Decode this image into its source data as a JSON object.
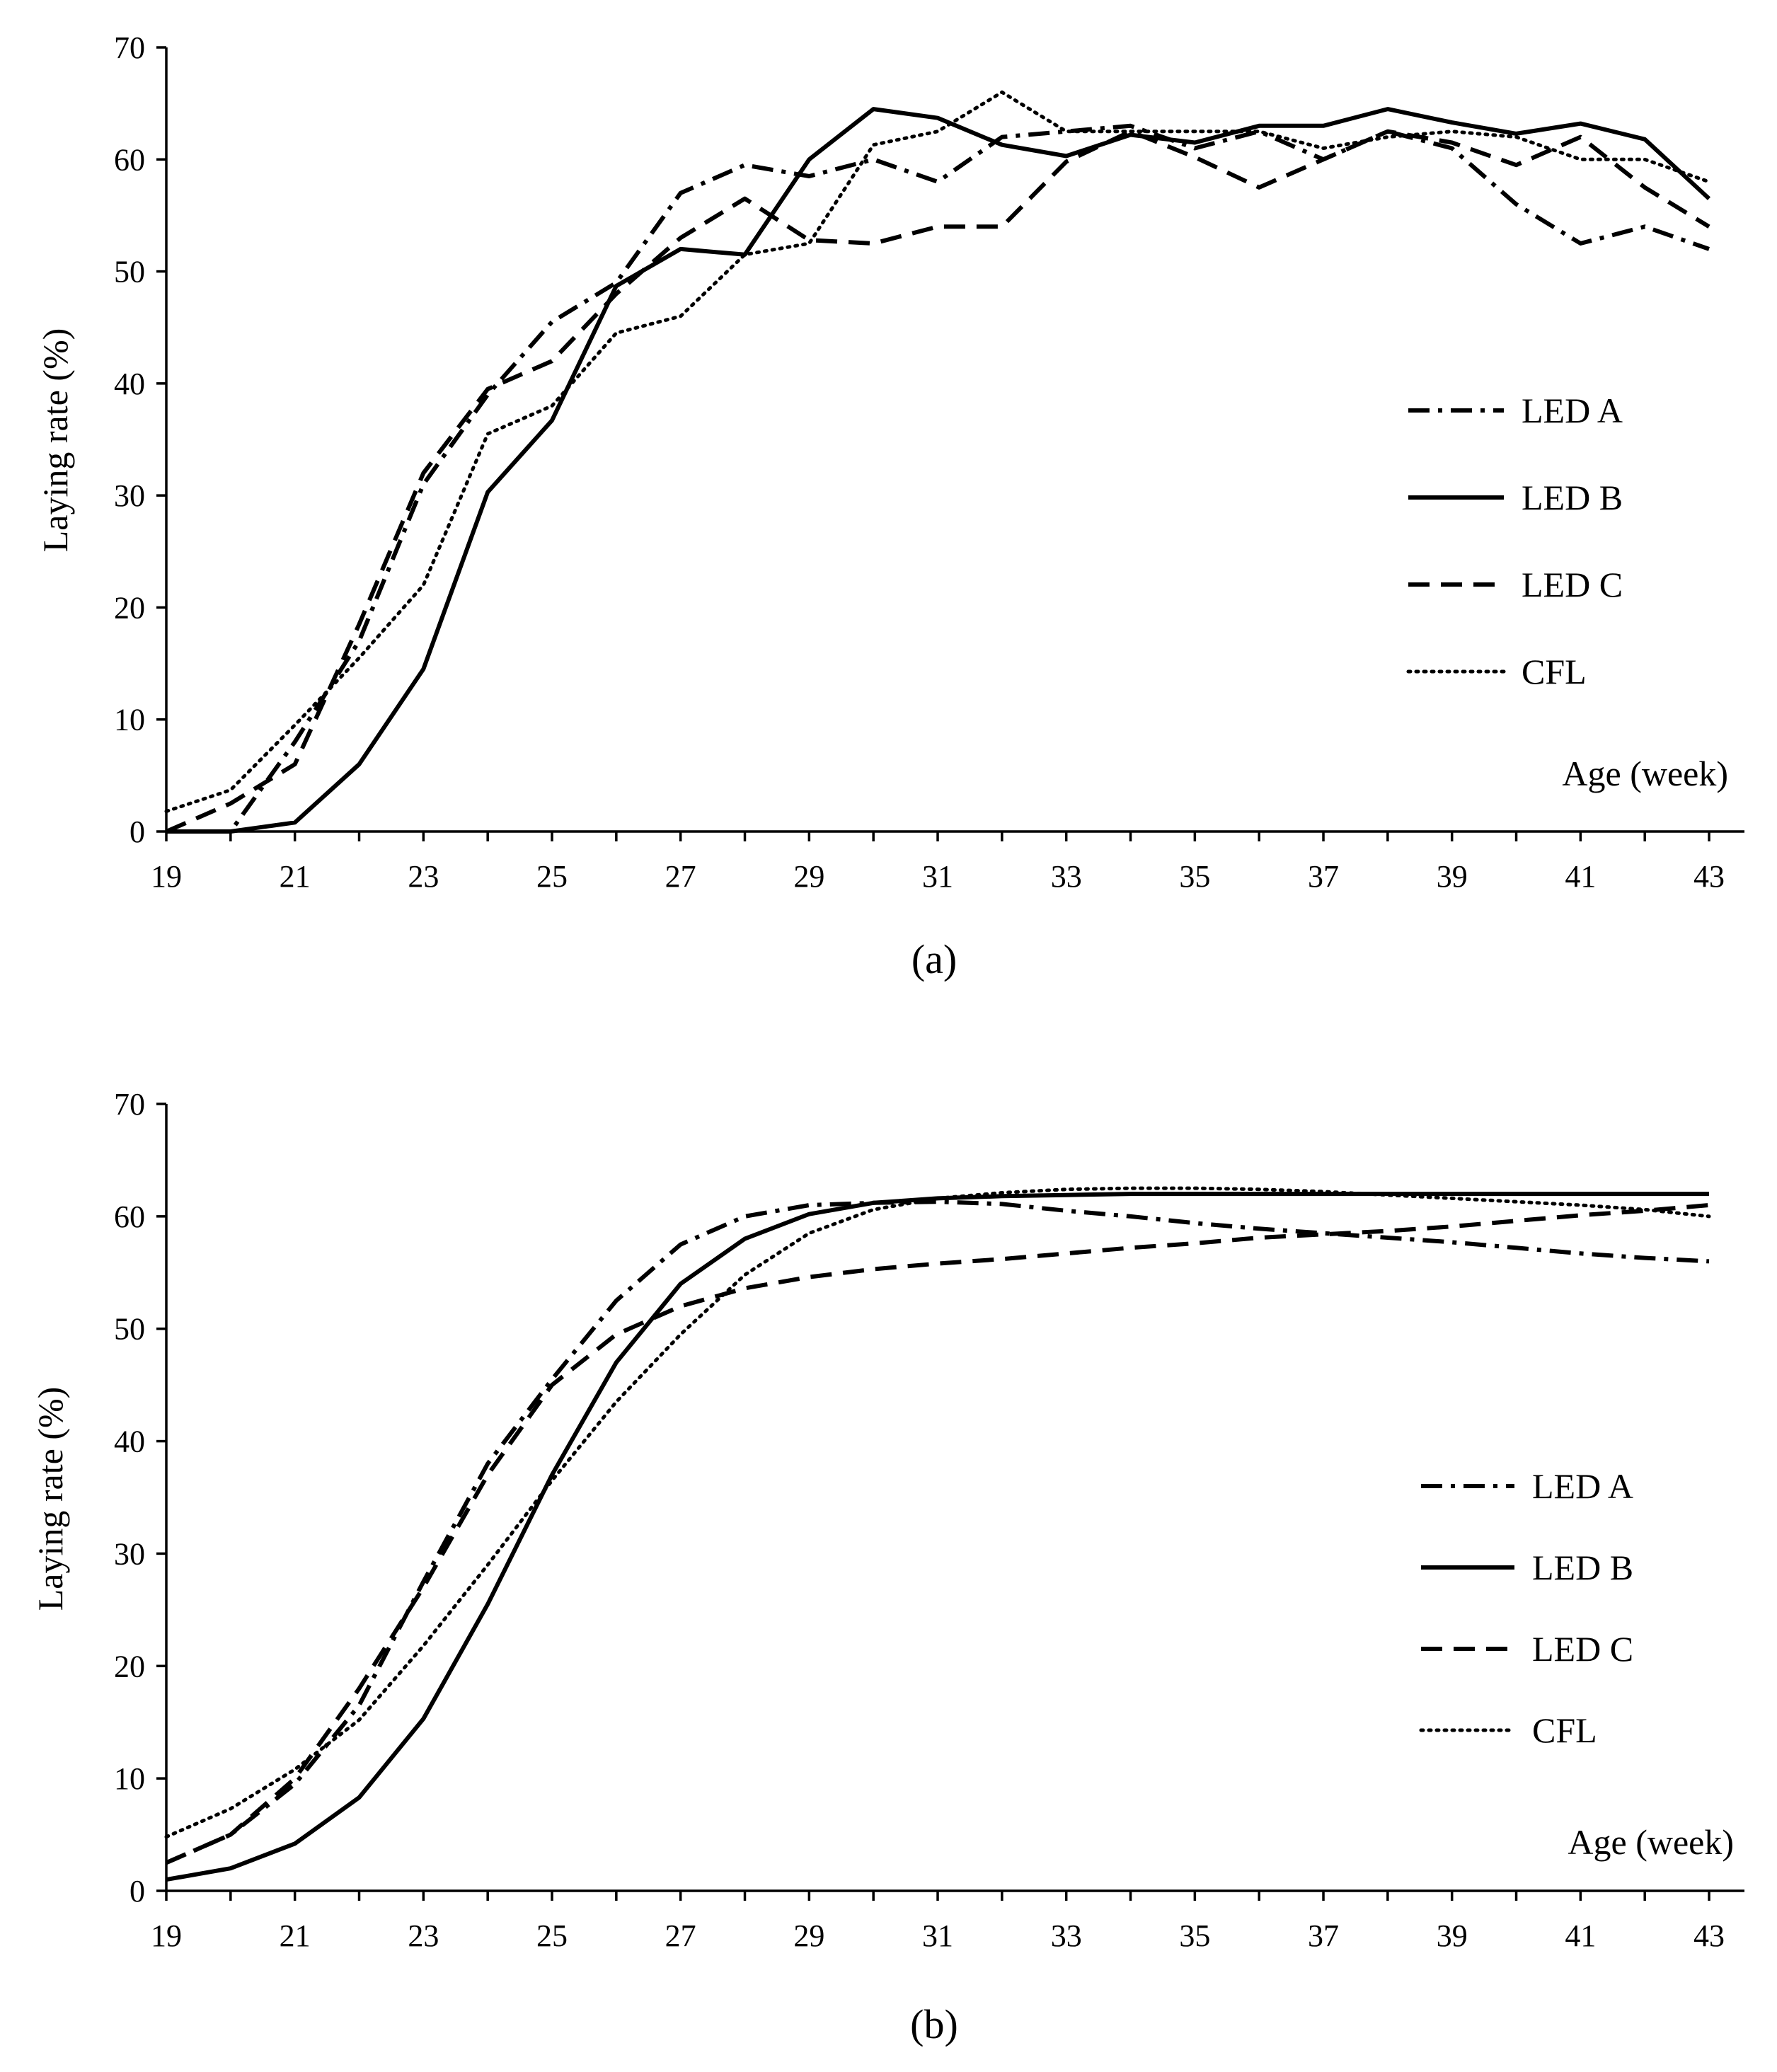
{
  "chart_data": [
    {
      "type": "line",
      "panel": "(a)",
      "ylabel": "Laying rate (%)",
      "xlabel": "Age (week)",
      "ylim": [
        0,
        70
      ],
      "yticks": [
        0,
        10,
        20,
        30,
        40,
        50,
        60,
        70
      ],
      "xlim": [
        19,
        43
      ],
      "xticks": [
        19,
        21,
        23,
        25,
        27,
        29,
        31,
        33,
        35,
        37,
        39,
        41,
        43
      ],
      "grid": false,
      "legend_position": "right-middle",
      "x": [
        19,
        20,
        21,
        22,
        23,
        24,
        25,
        26,
        27,
        28,
        29,
        30,
        31,
        32,
        33,
        34,
        35,
        36,
        37,
        38,
        39,
        40,
        41,
        42,
        43
      ],
      "series": [
        {
          "name": "LED A",
          "style": "dash-dot",
          "values": [
            0,
            0,
            8,
            17,
            31,
            39,
            45.5,
            49,
            57,
            59.5,
            58.5,
            60,
            58,
            62,
            62.5,
            63,
            61,
            62.5,
            60,
            62.5,
            61,
            56,
            52.5,
            54,
            52
          ]
        },
        {
          "name": "LED B",
          "style": "solid",
          "values": [
            0,
            0,
            0.8,
            6,
            14.5,
            30.3,
            36.7,
            48.7,
            52,
            51.5,
            60,
            64.5,
            63.7,
            61.3,
            60.3,
            62.2,
            61.5,
            63,
            63,
            64.5,
            63.3,
            62.3,
            63.2,
            61.8,
            56.5
          ]
        },
        {
          "name": "LED C",
          "style": "dashed",
          "values": [
            0,
            2.5,
            6,
            18.5,
            32,
            39.5,
            42,
            48,
            53,
            56.5,
            52.8,
            52.5,
            54,
            54,
            59.8,
            62.5,
            60.2,
            57.5,
            60,
            62.5,
            61.5,
            59.5,
            62,
            57.5,
            54
          ]
        },
        {
          "name": "CFL",
          "style": "dotted",
          "values": [
            1.8,
            3.7,
            9.5,
            15.5,
            22,
            35.5,
            38,
            44.5,
            46,
            51.5,
            52.5,
            61.3,
            62.5,
            66,
            62.5,
            62.5,
            62.5,
            62.5,
            61,
            62,
            62.5,
            62,
            60,
            60,
            58
          ]
        }
      ]
    },
    {
      "type": "line",
      "panel": "(b)",
      "ylabel": "Laying rate (%)",
      "xlabel": "Age (week)",
      "ylim": [
        0,
        70
      ],
      "yticks": [
        0,
        10,
        20,
        30,
        40,
        50,
        60,
        70
      ],
      "xlim": [
        19,
        43
      ],
      "xticks": [
        19,
        21,
        23,
        25,
        27,
        29,
        31,
        33,
        35,
        37,
        39,
        41,
        43
      ],
      "grid": false,
      "legend_position": "right-middle",
      "x": [
        19,
        20,
        21,
        22,
        23,
        24,
        25,
        26,
        27,
        28,
        29,
        30,
        31,
        32,
        33,
        34,
        35,
        36,
        37,
        38,
        39,
        40,
        41,
        42,
        43
      ],
      "series": [
        {
          "name": "LED A",
          "style": "dash-dot",
          "values": [
            2.5,
            5,
            9.5,
            16.5,
            27.5,
            38,
            45.5,
            52.5,
            57.5,
            60,
            61,
            61.2,
            61.3,
            61.1,
            60.5,
            60,
            59.4,
            58.9,
            58.5,
            58.1,
            57.7,
            57.2,
            56.7,
            56.3,
            56
          ]
        },
        {
          "name": "LED B",
          "style": "solid",
          "values": [
            1,
            2,
            4.2,
            8.3,
            15.3,
            25.5,
            37,
            47,
            54,
            58,
            60.2,
            61.2,
            61.6,
            61.8,
            61.9,
            62,
            62,
            62,
            62,
            62,
            62,
            62,
            62,
            62,
            62
          ]
        },
        {
          "name": "LED C",
          "style": "dashed",
          "values": [
            2.5,
            5,
            10,
            18,
            27,
            37,
            45,
            49.5,
            52,
            53.6,
            54.6,
            55.3,
            55.8,
            56.2,
            56.7,
            57.2,
            57.6,
            58.1,
            58.4,
            58.7,
            59.1,
            59.6,
            60.1,
            60.5,
            61
          ]
        },
        {
          "name": "CFL",
          "style": "dotted",
          "values": [
            4.8,
            7.3,
            10.8,
            15.2,
            21.8,
            29,
            36.5,
            43.5,
            49.5,
            54.8,
            58.5,
            60.6,
            61.6,
            62.1,
            62.4,
            62.5,
            62.5,
            62.4,
            62.2,
            61.9,
            61.6,
            61.3,
            61,
            60.6,
            60
          ]
        }
      ]
    }
  ]
}
